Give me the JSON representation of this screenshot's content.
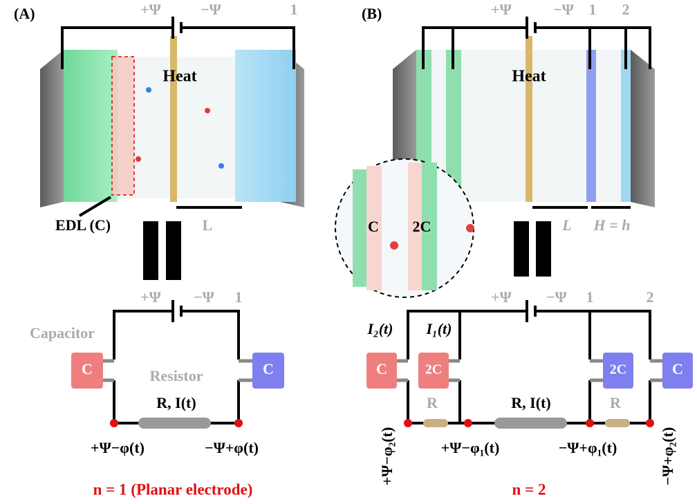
{
  "panel_a": {
    "label": "(A)",
    "device": {
      "plus": "+Ψ",
      "minus": "−Ψ",
      "electrode": "1",
      "heat": "Heat",
      "edl": "EDL (C)",
      "length": "L"
    },
    "circuit": {
      "plus": "+Ψ",
      "minus": "−Ψ",
      "electrode": "1",
      "capacitor_label": "Capacitor",
      "capacitors": [
        "C",
        "C"
      ],
      "resistor_label": "Resistor",
      "resistor": "R, I(t)",
      "left_potential": "+Ψ−φ(t)",
      "right_potential": "−Ψ+φ(t)"
    },
    "caption": "n = 1 (Planar electrode)"
  },
  "panel_b": {
    "label": "(B)",
    "device": {
      "plus": "+Ψ",
      "minus": "−Ψ",
      "electrodes": [
        "1",
        "2"
      ],
      "heat": "Heat",
      "inset": [
        "C",
        "2C"
      ],
      "length": "L",
      "pore": "H = h"
    },
    "circuit": {
      "plus": "+Ψ",
      "minus": "−Ψ",
      "electrodes": [
        "1",
        "2"
      ],
      "currents": [
        "I₂(t)",
        "I₁(t)"
      ],
      "capacitors": [
        "C",
        "2C",
        "2C",
        "C"
      ],
      "resistors": [
        "R",
        "R, I(t)",
        "R"
      ],
      "potentials": [
        "+Ψ−φ₂(t)",
        "+Ψ−φ₁(t)",
        "−Ψ+φ₁(t)",
        "−Ψ+φ₂(t)"
      ]
    },
    "caption": "n = 2"
  }
}
